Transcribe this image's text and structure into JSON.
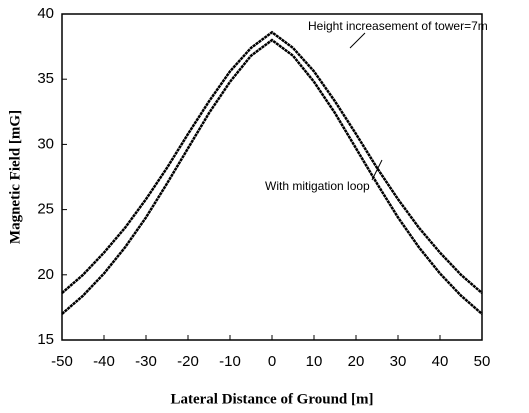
{
  "chart_data": {
    "type": "line",
    "xlabel": "Lateral Distance of Ground [m]",
    "ylabel": "Magnetic Field [mG]",
    "x": [
      -50,
      -45,
      -40,
      -35,
      -30,
      -25,
      -20,
      -15,
      -10,
      -5,
      0,
      5,
      10,
      15,
      20,
      25,
      30,
      35,
      40,
      45,
      50
    ],
    "series": [
      {
        "name": "Height  increasement of tower=7m",
        "color": "#000000",
        "values": [
          18.6,
          20.0,
          21.7,
          23.6,
          25.8,
          28.2,
          30.8,
          33.3,
          35.6,
          37.4,
          38.6,
          37.4,
          35.6,
          33.3,
          30.8,
          28.2,
          25.8,
          23.6,
          21.7,
          20.0,
          18.6
        ]
      },
      {
        "name": "With mitigation loop",
        "color": "#000000",
        "values": [
          17.0,
          18.4,
          20.1,
          22.1,
          24.4,
          27.0,
          29.7,
          32.4,
          34.8,
          36.8,
          38.0,
          36.8,
          34.8,
          32.4,
          29.7,
          27.0,
          24.4,
          22.1,
          20.1,
          18.4,
          17.0
        ]
      }
    ],
    "xlim": [
      -50,
      50
    ],
    "xticks": [
      -50,
      -40,
      -30,
      -20,
      -10,
      0,
      10,
      20,
      30,
      40,
      50
    ],
    "ylim": [
      15,
      40
    ],
    "yticks": [
      15,
      20,
      25,
      30,
      35,
      40
    ]
  }
}
